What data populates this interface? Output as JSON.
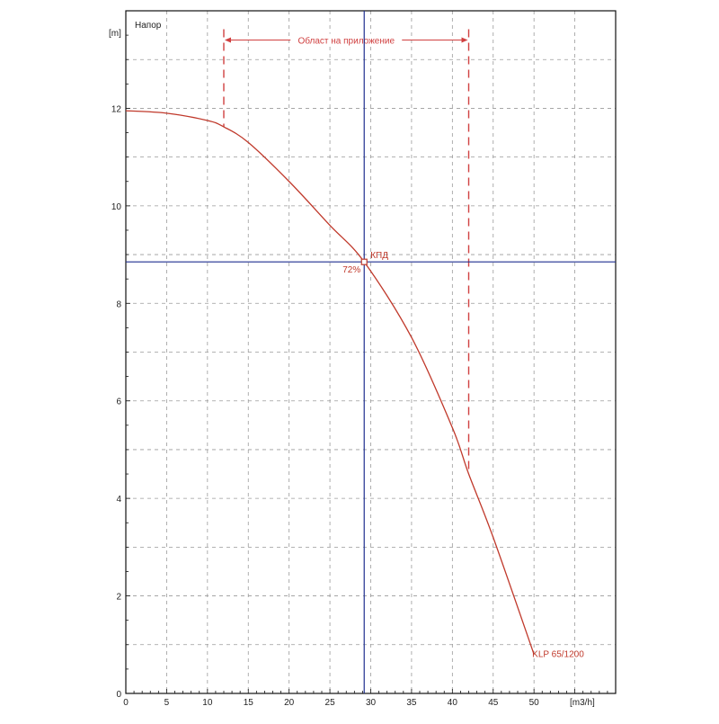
{
  "chart_data": {
    "type": "line",
    "title": "Напор",
    "ylabel": "[m]",
    "xlabel": "[m3/h]",
    "xlim": [
      0,
      60
    ],
    "ylim": [
      0,
      14
    ],
    "x_ticks": [
      0,
      5,
      10,
      15,
      20,
      25,
      30,
      35,
      40,
      45,
      50
    ],
    "y_ticks": [
      0,
      2,
      4,
      6,
      8,
      10,
      12
    ],
    "grid": true,
    "series": [
      {
        "name": "KLP 65/1200",
        "color": "#c0392b",
        "x": [
          0,
          5,
          10,
          12,
          15,
          20,
          25,
          29.2,
          35,
          40,
          42,
          45,
          50
        ],
        "y": [
          11.95,
          11.9,
          11.75,
          11.62,
          11.3,
          10.5,
          9.6,
          8.85,
          7.3,
          5.45,
          4.5,
          3.2,
          0.8
        ]
      }
    ],
    "range_label": "Област на приложение",
    "range_x": [
      12,
      42
    ],
    "range_top_y": 13.4,
    "operating_point": {
      "x": 29.2,
      "y": 8.85,
      "label": "КПД",
      "value": "72%"
    },
    "colors": {
      "curve": "#c0392b",
      "crosshair": "#1f2f8f",
      "range": "#d04040",
      "grid": "#9a9a9a"
    }
  }
}
